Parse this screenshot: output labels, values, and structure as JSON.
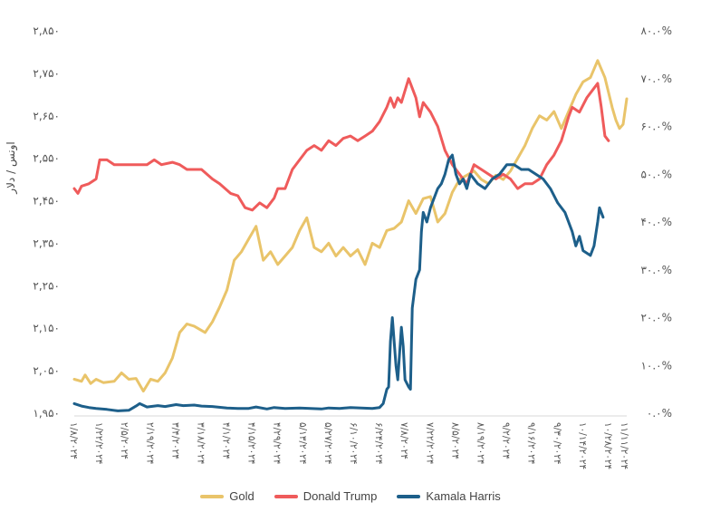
{
  "chart_data": {
    "type": "line",
    "ylabel": "اونس / دلار",
    "y_left": {
      "min": 1950,
      "max": 2850,
      "ticks": [
        "۱,۹۵۰",
        "۲,۰۵۰",
        "۲,۱۵۰",
        "۲,۲۵۰",
        "۲,۳۵۰",
        "۲,۴۵۰",
        "۲,۵۵۰",
        "۲,۶۵۰",
        "۲,۷۵۰",
        "۲,۸۵۰"
      ]
    },
    "y_right": {
      "min": 0,
      "max": 80,
      "ticks": [
        "۰.۰%",
        "۱۰.۰%",
        "۲۰.۰%",
        "۳۰.۰%",
        "۴۰.۰%",
        "۵۰.۰%",
        "۶۰.۰%",
        "۷۰.۰%",
        "۸۰.۰%"
      ]
    },
    "x_range": [
      0,
      304
    ],
    "x_ticks": [
      {
        "pos": 0,
        "label": "۱/۸/۲۰۲۴"
      },
      {
        "pos": 14,
        "label": "۱/۲۲/۲۰۲۴"
      },
      {
        "pos": 28,
        "label": "۲/۵/۲۰۲۴"
      },
      {
        "pos": 42,
        "label": "۲/۱۹/۲۰۲۴"
      },
      {
        "pos": 56,
        "label": "۳/۴/۲۰۲۴"
      },
      {
        "pos": 70,
        "label": "۳/۱۸/۲۰۲۴"
      },
      {
        "pos": 84,
        "label": "۴/۱/۲۰۲۴"
      },
      {
        "pos": 98,
        "label": "۴/۱۵/۲۰۲۴"
      },
      {
        "pos": 112,
        "label": "۴/۲۹/۲۰۲۴"
      },
      {
        "pos": 126,
        "label": "۵/۱۳/۲۰۲۴"
      },
      {
        "pos": 140,
        "label": "۵/۲۷/۲۰۲۴"
      },
      {
        "pos": 154,
        "label": "۶/۱۰/۲۰۲۴"
      },
      {
        "pos": 168,
        "label": "۶/۲۴/۲۰۲۴"
      },
      {
        "pos": 182,
        "label": "۷/۸/۲۰۲۴"
      },
      {
        "pos": 196,
        "label": "۷/۲۲/۲۰۲۴"
      },
      {
        "pos": 210,
        "label": "۸/۵/۲۰۲۴"
      },
      {
        "pos": 224,
        "label": "۸/۱۹/۲۰۲۴"
      },
      {
        "pos": 238,
        "label": "۹/۲/۲۰۲۴"
      },
      {
        "pos": 252,
        "label": "۹/۱۶/۲۰۲۴"
      },
      {
        "pos": 266,
        "label": "۹/۳۰/۲۰۲۴"
      },
      {
        "pos": 280,
        "label": "۱۰/۱۴/۲۰۲۴"
      },
      {
        "pos": 294,
        "label": "۱۰/۲۸/۲۰۲۴"
      },
      {
        "pos": 308,
        "label": "۱۱/۱۱/۲۰۲۴"
      }
    ],
    "series": [
      {
        "name": "Gold",
        "axis": "left",
        "color": "#E9C46A",
        "points": [
          [
            0,
            2030
          ],
          [
            4,
            2025
          ],
          [
            6,
            2040
          ],
          [
            9,
            2020
          ],
          [
            12,
            2030
          ],
          [
            16,
            2022
          ],
          [
            22,
            2025
          ],
          [
            26,
            2045
          ],
          [
            30,
            2030
          ],
          [
            34,
            2032
          ],
          [
            38,
            2002
          ],
          [
            42,
            2030
          ],
          [
            46,
            2025
          ],
          [
            50,
            2045
          ],
          [
            54,
            2080
          ],
          [
            58,
            2140
          ],
          [
            62,
            2160
          ],
          [
            66,
            2155
          ],
          [
            72,
            2140
          ],
          [
            76,
            2165
          ],
          [
            80,
            2200
          ],
          [
            84,
            2240
          ],
          [
            88,
            2310
          ],
          [
            92,
            2330
          ],
          [
            96,
            2360
          ],
          [
            100,
            2390
          ],
          [
            104,
            2310
          ],
          [
            108,
            2330
          ],
          [
            112,
            2300
          ],
          [
            116,
            2320
          ],
          [
            120,
            2340
          ],
          [
            124,
            2380
          ],
          [
            128,
            2410
          ],
          [
            132,
            2340
          ],
          [
            136,
            2330
          ],
          [
            140,
            2350
          ],
          [
            144,
            2320
          ],
          [
            148,
            2340
          ],
          [
            152,
            2320
          ],
          [
            156,
            2335
          ],
          [
            160,
            2300
          ],
          [
            164,
            2350
          ],
          [
            168,
            2340
          ],
          [
            172,
            2380
          ],
          [
            176,
            2385
          ],
          [
            180,
            2400
          ],
          [
            184,
            2450
          ],
          [
            188,
            2420
          ],
          [
            192,
            2455
          ],
          [
            196,
            2460
          ],
          [
            200,
            2400
          ],
          [
            204,
            2420
          ],
          [
            208,
            2470
          ],
          [
            212,
            2500
          ],
          [
            216,
            2510
          ],
          [
            220,
            2520
          ],
          [
            224,
            2500
          ],
          [
            228,
            2490
          ],
          [
            232,
            2510
          ],
          [
            236,
            2500
          ],
          [
            240,
            2520
          ],
          [
            244,
            2550
          ],
          [
            248,
            2580
          ],
          [
            252,
            2620
          ],
          [
            256,
            2650
          ],
          [
            260,
            2640
          ],
          [
            264,
            2660
          ],
          [
            268,
            2620
          ],
          [
            272,
            2660
          ],
          [
            276,
            2700
          ],
          [
            280,
            2730
          ],
          [
            284,
            2740
          ],
          [
            288,
            2780
          ],
          [
            292,
            2740
          ],
          [
            296,
            2670
          ],
          [
            298,
            2640
          ],
          [
            300,
            2620
          ],
          [
            302,
            2630
          ],
          [
            304,
            2690
          ]
        ]
      },
      {
        "name": "Donald Trump",
        "axis": "right",
        "color": "#EF5B5B",
        "points": [
          [
            0,
            47
          ],
          [
            2,
            46
          ],
          [
            4,
            47.5
          ],
          [
            8,
            48
          ],
          [
            12,
            49
          ],
          [
            14,
            53
          ],
          [
            18,
            53
          ],
          [
            22,
            52
          ],
          [
            30,
            52
          ],
          [
            34,
            52
          ],
          [
            40,
            52
          ],
          [
            44,
            53
          ],
          [
            48,
            52
          ],
          [
            54,
            52.5
          ],
          [
            58,
            52
          ],
          [
            62,
            51
          ],
          [
            70,
            51
          ],
          [
            76,
            49
          ],
          [
            80,
            48
          ],
          [
            86,
            46
          ],
          [
            90,
            45.5
          ],
          [
            94,
            43
          ],
          [
            98,
            42.5
          ],
          [
            102,
            44
          ],
          [
            106,
            43
          ],
          [
            110,
            45
          ],
          [
            112,
            47
          ],
          [
            116,
            47
          ],
          [
            120,
            51
          ],
          [
            124,
            53
          ],
          [
            128,
            55
          ],
          [
            132,
            56
          ],
          [
            136,
            55
          ],
          [
            140,
            57
          ],
          [
            144,
            56
          ],
          [
            148,
            57.5
          ],
          [
            152,
            58
          ],
          [
            156,
            57
          ],
          [
            160,
            58
          ],
          [
            164,
            59
          ],
          [
            168,
            61
          ],
          [
            172,
            64
          ],
          [
            174,
            66
          ],
          [
            176,
            64
          ],
          [
            178,
            66
          ],
          [
            180,
            65
          ],
          [
            184,
            70
          ],
          [
            186,
            68
          ],
          [
            188,
            66
          ],
          [
            190,
            62
          ],
          [
            192,
            65
          ],
          [
            196,
            63
          ],
          [
            200,
            60
          ],
          [
            204,
            55
          ],
          [
            208,
            52
          ],
          [
            212,
            50
          ],
          [
            216,
            48
          ],
          [
            220,
            52
          ],
          [
            224,
            51
          ],
          [
            228,
            50
          ],
          [
            232,
            49
          ],
          [
            236,
            50
          ],
          [
            240,
            49
          ],
          [
            244,
            47
          ],
          [
            248,
            48
          ],
          [
            252,
            48
          ],
          [
            256,
            49
          ],
          [
            260,
            52
          ],
          [
            264,
            54
          ],
          [
            268,
            57
          ],
          [
            272,
            62
          ],
          [
            274,
            64
          ],
          [
            278,
            63
          ],
          [
            282,
            66
          ],
          [
            286,
            68
          ],
          [
            288,
            69
          ],
          [
            290,
            64
          ],
          [
            292,
            58
          ],
          [
            294,
            57
          ]
        ]
      },
      {
        "name": "Kamala Harris",
        "axis": "right",
        "color": "#1D5F8A",
        "points": [
          [
            0,
            2
          ],
          [
            4,
            1.5
          ],
          [
            8,
            1.2
          ],
          [
            12,
            1
          ],
          [
            18,
            0.8
          ],
          [
            24,
            0.5
          ],
          [
            30,
            0.6
          ],
          [
            34,
            1.5
          ],
          [
            36,
            2
          ],
          [
            40,
            1.3
          ],
          [
            46,
            1.6
          ],
          [
            50,
            1.4
          ],
          [
            56,
            1.8
          ],
          [
            60,
            1.6
          ],
          [
            66,
            1.7
          ],
          [
            70,
            1.5
          ],
          [
            76,
            1.4
          ],
          [
            84,
            1.1
          ],
          [
            90,
            1
          ],
          [
            96,
            1
          ],
          [
            100,
            1.3
          ],
          [
            106,
            0.9
          ],
          [
            110,
            1.2
          ],
          [
            116,
            1
          ],
          [
            124,
            1.1
          ],
          [
            130,
            1
          ],
          [
            136,
            0.9
          ],
          [
            140,
            1.1
          ],
          [
            146,
            1
          ],
          [
            152,
            1.2
          ],
          [
            158,
            1.1
          ],
          [
            164,
            1
          ],
          [
            168,
            1.2
          ],
          [
            170,
            2
          ],
          [
            172,
            5
          ],
          [
            173,
            5.5
          ],
          [
            174,
            15
          ],
          [
            175,
            20
          ],
          [
            176,
            15
          ],
          [
            177,
            10
          ],
          [
            178,
            7
          ],
          [
            180,
            18
          ],
          [
            181,
            14
          ],
          [
            182,
            7
          ],
          [
            184,
            5.5
          ],
          [
            185,
            5
          ],
          [
            186,
            22
          ],
          [
            188,
            28
          ],
          [
            190,
            30
          ],
          [
            191,
            38
          ],
          [
            192,
            42
          ],
          [
            194,
            40
          ],
          [
            196,
            43
          ],
          [
            198,
            45
          ],
          [
            200,
            47
          ],
          [
            202,
            48
          ],
          [
            204,
            50
          ],
          [
            206,
            53
          ],
          [
            208,
            54
          ],
          [
            210,
            50
          ],
          [
            212,
            48
          ],
          [
            214,
            49
          ],
          [
            216,
            47
          ],
          [
            218,
            50
          ],
          [
            222,
            48
          ],
          [
            226,
            47
          ],
          [
            230,
            49
          ],
          [
            234,
            50
          ],
          [
            238,
            52
          ],
          [
            242,
            52
          ],
          [
            246,
            51
          ],
          [
            250,
            51
          ],
          [
            254,
            50
          ],
          [
            258,
            49
          ],
          [
            262,
            47
          ],
          [
            266,
            44
          ],
          [
            270,
            42
          ],
          [
            274,
            38
          ],
          [
            276,
            35
          ],
          [
            278,
            37
          ],
          [
            280,
            34
          ],
          [
            284,
            33
          ],
          [
            286,
            35
          ],
          [
            288,
            40
          ],
          [
            289,
            43
          ],
          [
            290,
            42
          ],
          [
            291,
            41
          ]
        ]
      }
    ],
    "legend": {
      "position": "bottom"
    },
    "grid": false
  }
}
